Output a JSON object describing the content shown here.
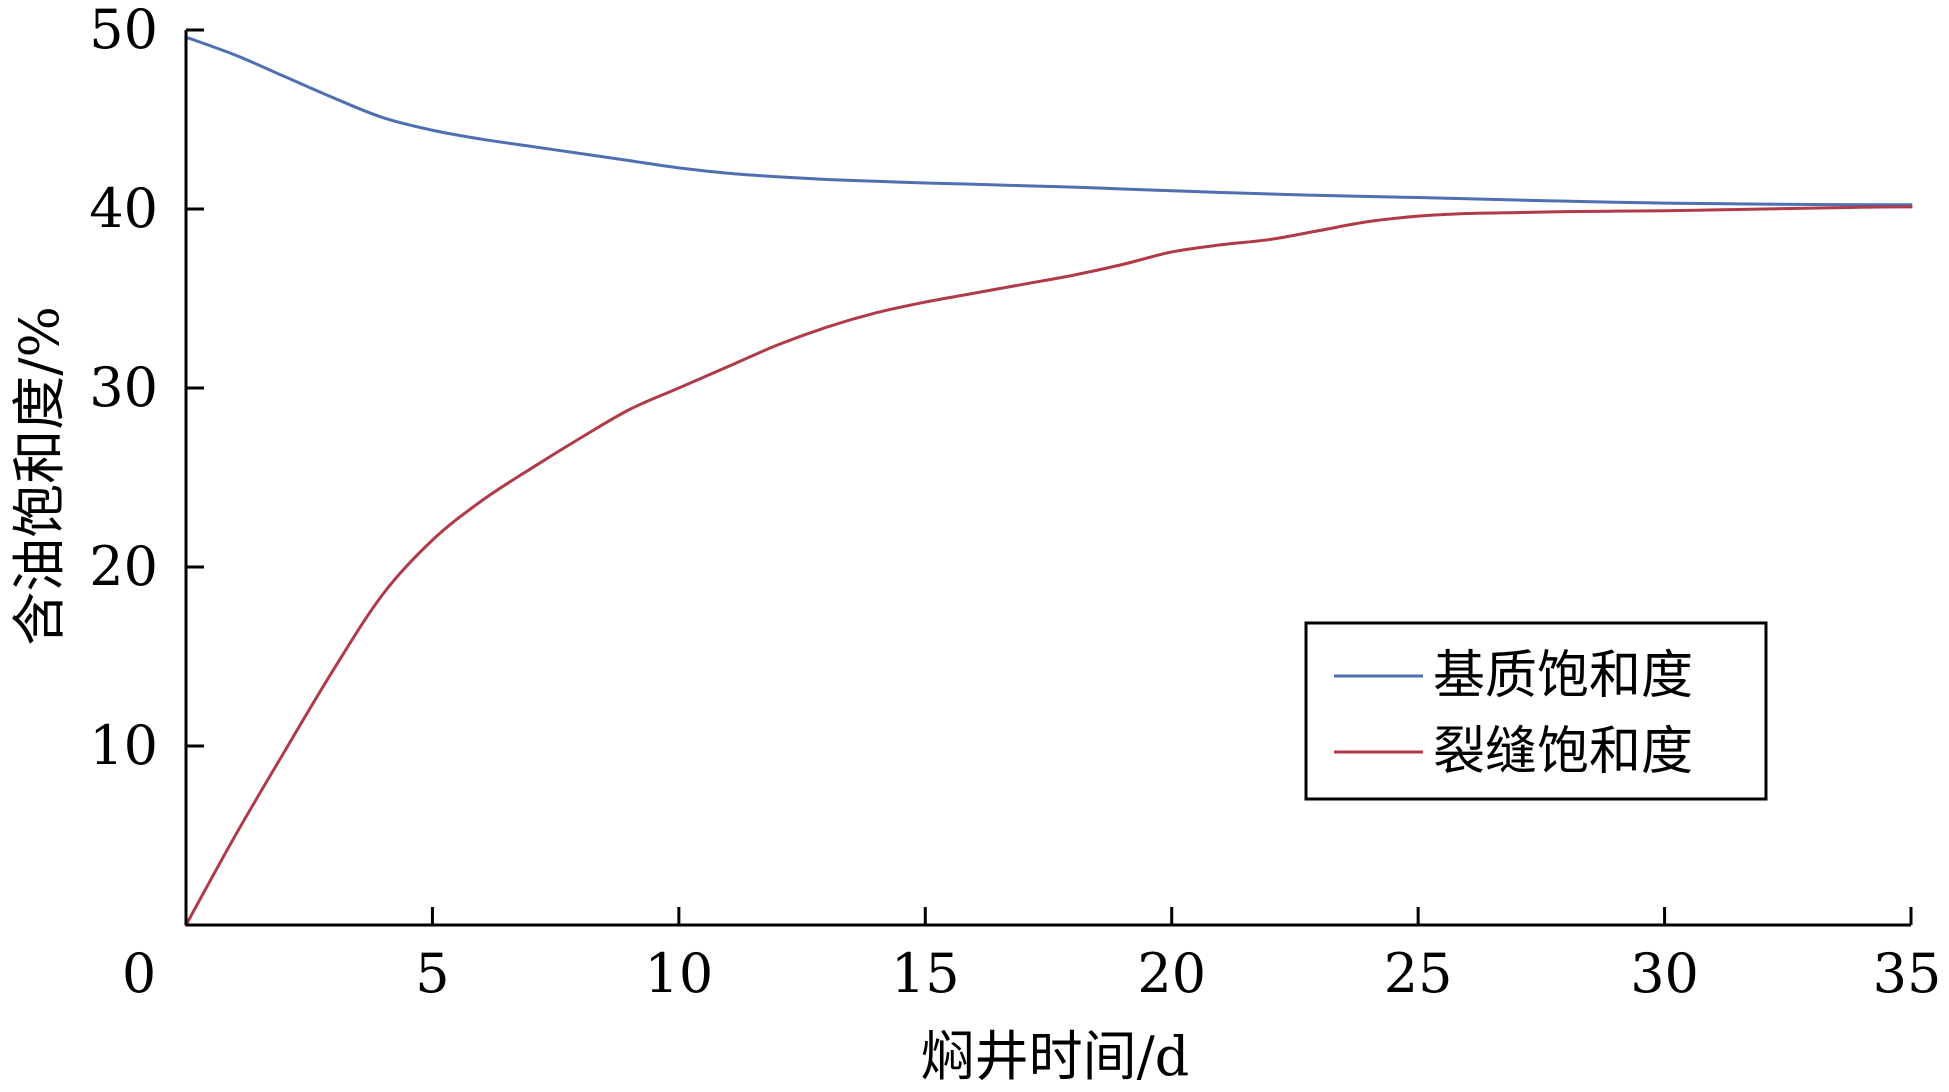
{
  "chart_data": {
    "type": "line",
    "title": "",
    "xlabel": "焖井时间/d",
    "ylabel": "含油饱和度/%",
    "xlim": [
      0,
      35
    ],
    "ylim": [
      0,
      50
    ],
    "x_ticks": [
      0,
      5,
      10,
      15,
      20,
      25,
      30,
      35
    ],
    "y_ticks": [
      10,
      20,
      30,
      40,
      50
    ],
    "x_tick_labels": [
      "0",
      "5",
      "10",
      "15",
      "20",
      "25",
      "30",
      "35"
    ],
    "y_tick_labels": [
      "10",
      "20",
      "30",
      "40",
      "50"
    ],
    "grid": false,
    "legend_position": "lower-right",
    "series": [
      {
        "name": "基质饱和度",
        "color": "#4f6fb3",
        "points": [
          [
            0,
            49.6
          ],
          [
            1,
            48.6
          ],
          [
            2,
            47.4
          ],
          [
            3,
            46.2
          ],
          [
            4,
            45.1
          ],
          [
            5,
            44.4
          ],
          [
            6,
            43.9
          ],
          [
            7,
            43.5
          ],
          [
            8,
            43.1
          ],
          [
            9,
            42.7
          ],
          [
            10,
            42.3
          ],
          [
            11,
            42.0
          ],
          [
            12,
            41.8
          ],
          [
            13,
            41.65
          ],
          [
            14,
            41.55
          ],
          [
            15,
            41.45
          ],
          [
            16,
            41.38
          ],
          [
            17,
            41.3
          ],
          [
            18,
            41.22
          ],
          [
            19,
            41.12
          ],
          [
            20,
            41.02
          ],
          [
            21,
            40.92
          ],
          [
            22,
            40.84
          ],
          [
            23,
            40.76
          ],
          [
            24,
            40.7
          ],
          [
            25,
            40.64
          ],
          [
            26,
            40.57
          ],
          [
            27,
            40.5
          ],
          [
            28,
            40.44
          ],
          [
            29,
            40.38
          ],
          [
            30,
            40.33
          ],
          [
            31,
            40.3
          ],
          [
            32,
            40.27
          ],
          [
            33,
            40.25
          ],
          [
            34,
            40.24
          ],
          [
            35,
            40.24
          ]
        ]
      },
      {
        "name": "裂缝饱和度",
        "color": "#b03a48",
        "points": [
          [
            0,
            0.0
          ],
          [
            1,
            5.0
          ],
          [
            2,
            9.7
          ],
          [
            3,
            14.3
          ],
          [
            4,
            18.5
          ],
          [
            5,
            21.5
          ],
          [
            6,
            23.7
          ],
          [
            7,
            25.5
          ],
          [
            8,
            27.2
          ],
          [
            9,
            28.8
          ],
          [
            10,
            30.0
          ],
          [
            11,
            31.2
          ],
          [
            12,
            32.4
          ],
          [
            13,
            33.4
          ],
          [
            14,
            34.2
          ],
          [
            15,
            34.8
          ],
          [
            16,
            35.3
          ],
          [
            17,
            35.8
          ],
          [
            18,
            36.3
          ],
          [
            19,
            36.9
          ],
          [
            20,
            37.6
          ],
          [
            21,
            38.0
          ],
          [
            22,
            38.3
          ],
          [
            23,
            38.8
          ],
          [
            24,
            39.3
          ],
          [
            25,
            39.6
          ],
          [
            26,
            39.75
          ],
          [
            27,
            39.8
          ],
          [
            28,
            39.85
          ],
          [
            29,
            39.88
          ],
          [
            30,
            39.9
          ],
          [
            31,
            39.95
          ],
          [
            32,
            40.0
          ],
          [
            33,
            40.05
          ],
          [
            34,
            40.1
          ],
          [
            35,
            40.12
          ]
        ]
      }
    ]
  }
}
